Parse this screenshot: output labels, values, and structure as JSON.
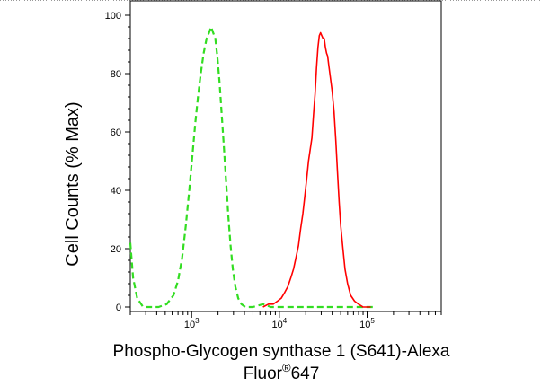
{
  "chart_data": {
    "type": "line",
    "x_scale": "log",
    "ylabel": "Cell Counts (% Max)",
    "xlabel_main": "Phospho-Glycogen synthase 1 (S641)-Alexa",
    "xlabel_line2_prefix": "Fluor",
    "xlabel_line2_mark": "®",
    "xlabel_line2_suffix": "647",
    "xlim": [
      200,
      700000
    ],
    "ylim": [
      0,
      100
    ],
    "yticks": [
      0,
      20,
      40,
      60,
      80,
      100
    ],
    "y_tick_labels": [
      "0",
      "20",
      "40",
      "60",
      "80",
      "100"
    ],
    "xticks_major": [
      {
        "value": 1000,
        "base": "10",
        "exp": "3"
      },
      {
        "value": 10000,
        "base": "10",
        "exp": "4"
      },
      {
        "value": 100000,
        "base": "10",
        "exp": "5"
      }
    ],
    "series": [
      {
        "color": "#33dd22",
        "dash": "dashed",
        "points": [
          [
            200,
            22
          ],
          [
            215,
            10
          ],
          [
            240,
            3
          ],
          [
            280,
            0
          ],
          [
            330,
            0
          ],
          [
            420,
            0
          ],
          [
            520,
            1
          ],
          [
            620,
            4
          ],
          [
            700,
            9
          ],
          [
            780,
            17
          ],
          [
            860,
            28
          ],
          [
            940,
            40
          ],
          [
            1020,
            52
          ],
          [
            1100,
            63
          ],
          [
            1180,
            72
          ],
          [
            1270,
            80
          ],
          [
            1370,
            87
          ],
          [
            1480,
            92
          ],
          [
            1580,
            94
          ],
          [
            1670,
            96
          ],
          [
            1760,
            94
          ],
          [
            1860,
            92
          ],
          [
            1960,
            86
          ],
          [
            2080,
            77
          ],
          [
            2200,
            66
          ],
          [
            2330,
            55
          ],
          [
            2470,
            43
          ],
          [
            2620,
            31
          ],
          [
            2780,
            21
          ],
          [
            2950,
            13
          ],
          [
            3150,
            7
          ],
          [
            3400,
            3
          ],
          [
            3700,
            1
          ],
          [
            4100,
            0
          ],
          [
            5000,
            0
          ],
          [
            6500,
            1
          ],
          [
            8000,
            0
          ],
          [
            12000,
            0
          ],
          [
            30000,
            0
          ],
          [
            80000,
            0
          ],
          [
            120000,
            0
          ]
        ]
      },
      {
        "color": "#ff0000",
        "dash": "solid",
        "points": [
          [
            6500,
            0
          ],
          [
            7500,
            1
          ],
          [
            8500,
            1
          ],
          [
            9500,
            2
          ],
          [
            10500,
            3
          ],
          [
            11500,
            5
          ],
          [
            12500,
            7
          ],
          [
            13500,
            10
          ],
          [
            14500,
            13
          ],
          [
            15500,
            17
          ],
          [
            16500,
            21
          ],
          [
            17500,
            27
          ],
          [
            18500,
            32
          ],
          [
            19500,
            38
          ],
          [
            20500,
            44
          ],
          [
            21500,
            50
          ],
          [
            22500,
            54
          ],
          [
            23500,
            58
          ],
          [
            24500,
            66
          ],
          [
            25500,
            73
          ],
          [
            26500,
            82
          ],
          [
            27500,
            89
          ],
          [
            28500,
            93
          ],
          [
            29500,
            94
          ],
          [
            30500,
            93
          ],
          [
            31500,
            92
          ],
          [
            32500,
            92
          ],
          [
            33500,
            89
          ],
          [
            34500,
            87
          ],
          [
            35500,
            86
          ],
          [
            36500,
            83
          ],
          [
            38000,
            79
          ],
          [
            40000,
            74
          ],
          [
            42000,
            67
          ],
          [
            44000,
            57
          ],
          [
            46000,
            46
          ],
          [
            48000,
            36
          ],
          [
            50000,
            28
          ],
          [
            53000,
            20
          ],
          [
            56000,
            13
          ],
          [
            60000,
            8
          ],
          [
            65000,
            4
          ],
          [
            72000,
            2
          ],
          [
            80000,
            1
          ],
          [
            90000,
            0
          ],
          [
            110000,
            0
          ]
        ]
      }
    ]
  }
}
